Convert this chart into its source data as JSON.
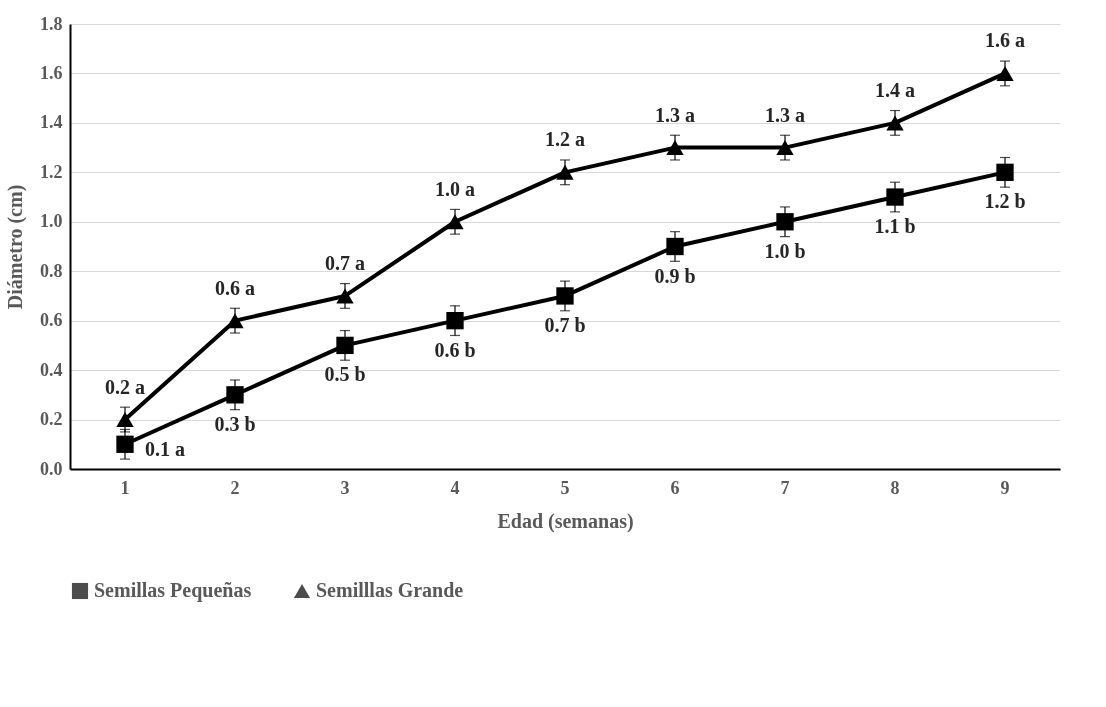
{
  "chart_data": {
    "type": "line",
    "xlabel": "Edad (semanas)",
    "ylabel": "Diámetro (cm)",
    "categories": [
      "1",
      "2",
      "3",
      "4",
      "5",
      "6",
      "7",
      "8",
      "9"
    ],
    "series": [
      {
        "name": "Semillas Pequeñas",
        "color": "#000000",
        "marker": "square",
        "values": [
          0.1,
          0.3,
          0.5,
          0.6,
          0.7,
          0.9,
          1.0,
          1.1,
          1.2
        ],
        "errors": [
          0.06,
          0.06,
          0.06,
          0.06,
          0.06,
          0.06,
          0.06,
          0.06,
          0.06
        ],
        "value_labels": [
          "0.1 a",
          "0.3 b",
          "0.5 b",
          "0.6 b",
          "0.7 b",
          "0.9 b",
          "1.0 b",
          "1.1 b",
          "1.2 b"
        ]
      },
      {
        "name": "Semilllas Grande",
        "color": "#000000",
        "marker": "triangle",
        "values": [
          0.2,
          0.6,
          0.7,
          1.0,
          1.2,
          1.3,
          1.3,
          1.4,
          1.6
        ],
        "errors": [
          0.05,
          0.05,
          0.05,
          0.05,
          0.05,
          0.05,
          0.05,
          0.05,
          0.05
        ],
        "value_labels": [
          "0.2 a",
          "0.6 a",
          "0.7 a",
          "1.0 a",
          "1.2 a",
          "1.3 a",
          "1.3 a",
          "1.4 a",
          "1.6 a"
        ]
      }
    ],
    "ylim": [
      0,
      1.8
    ],
    "yticks": [
      {
        "value": 0,
        "label": "0.0"
      },
      0.2,
      0.4,
      0.6,
      0.8,
      {
        "value": 1,
        "label": "1.0"
      },
      1.2,
      1.4,
      1.6,
      1.8
    ],
    "grid": "y",
    "legend": "bottom",
    "line_style": "solid"
  }
}
